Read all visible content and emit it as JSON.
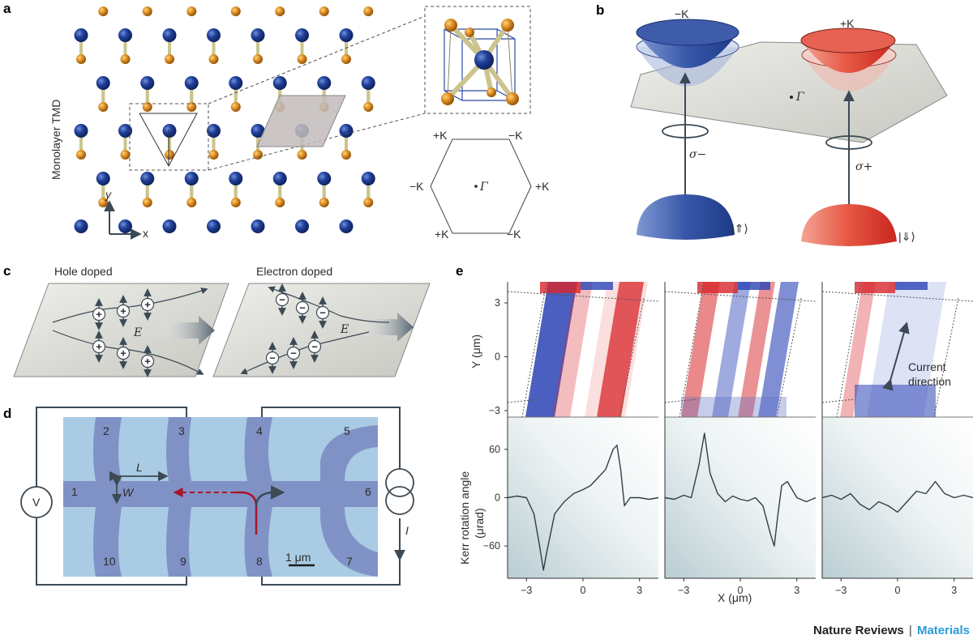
{
  "panels": {
    "a": {
      "label": "a",
      "vertical_label": "Monolayer TMD",
      "axis_y": "y",
      "axis_x": "x",
      "bz_labels": {
        "top_left": "+K",
        "top_right": "−K",
        "left": "−K",
        "right": "+K",
        "bottom_left": "+K",
        "bottom_right": "−K",
        "center": "Γ"
      }
    },
    "b": {
      "label": "b",
      "valley_left": "−K",
      "valley_right": "+K",
      "center": "Γ",
      "pol_left": "σ−",
      "pol_right": "σ+",
      "spin_left": "|⇑⟩",
      "spin_right": "|⇓⟩"
    },
    "c": {
      "label": "c",
      "hole_title": "Hole doped",
      "electron_title": "Electron doped",
      "field_label": "E",
      "plus_sign": "+",
      "minus_sign": "−"
    },
    "d": {
      "label": "d",
      "voltmeter": "V",
      "current_label": "I",
      "length_label": "L",
      "width_label": "W",
      "scale_bar": "1 μm",
      "contacts": [
        "1",
        "2",
        "3",
        "4",
        "5",
        "6",
        "7",
        "8",
        "9",
        "10"
      ]
    },
    "e": {
      "label": "e",
      "y_axis_label": "Y (μm)",
      "kerr_axis_label_1": "Kerr rotation angle",
      "kerr_axis_label_2": "(μrad)",
      "x_axis_label": "X (μm)",
      "current_annotation_1": "Current",
      "current_annotation_2": "direction",
      "y_ticks": [
        "3",
        "0",
        "−3"
      ],
      "kerr_ticks": [
        "60",
        "0",
        "−60"
      ],
      "x_ticks": [
        "−3",
        "0",
        "3"
      ]
    }
  },
  "chart_data": {
    "type": "line",
    "xlabel": "X (μm)",
    "ylabel": "Kerr rotation angle (μrad)",
    "xlim": [
      -4,
      4
    ],
    "ylim": [
      -100,
      100
    ],
    "series": [
      {
        "x": [
          -4,
          -3.5,
          -3,
          -2.6,
          -2.3,
          -2.1,
          -1.9,
          -1.5,
          -1,
          -0.5,
          0,
          0.4,
          0.8,
          1.2,
          1.6,
          1.8,
          2.0,
          2.2,
          2.5,
          3,
          3.5,
          4
        ],
        "values": [
          0,
          2,
          0,
          -20,
          -60,
          -90,
          -65,
          -20,
          -5,
          5,
          10,
          15,
          25,
          35,
          60,
          65,
          35,
          -10,
          0,
          0,
          -2,
          0
        ]
      },
      {
        "x": [
          -4,
          -3.5,
          -3,
          -2.6,
          -2.2,
          -1.9,
          -1.6,
          -1.2,
          -0.8,
          -0.4,
          0,
          0.4,
          0.8,
          1.2,
          1.6,
          1.8,
          2.0,
          2.2,
          2.5,
          3,
          3.5,
          4
        ],
        "values": [
          0,
          -2,
          3,
          0,
          40,
          80,
          30,
          5,
          -5,
          2,
          -2,
          -4,
          0,
          -10,
          -45,
          -60,
          -20,
          15,
          20,
          0,
          -5,
          0
        ]
      },
      {
        "x": [
          -4,
          -3.5,
          -3,
          -2.5,
          -2,
          -1.5,
          -1,
          -0.5,
          0,
          0.5,
          1,
          1.5,
          2,
          2.5,
          3,
          3.5,
          4
        ],
        "values": [
          0,
          3,
          -2,
          5,
          -8,
          -15,
          -5,
          -10,
          -18,
          -5,
          8,
          5,
          20,
          5,
          0,
          3,
          0
        ]
      }
    ]
  },
  "footer": {
    "journal": "Nature Reviews",
    "separator": "|",
    "section": "Materials"
  },
  "colors": {
    "valley_minus": "#2c4f9c",
    "valley_plus": "#e0493b",
    "gold_atom": "#d98a1e",
    "blue_atom": "#1f3f9a",
    "bond": "#cbc48e",
    "frame": "#3c4a55",
    "red_arrow": "#a8152a",
    "accent": "#2c9bd6"
  }
}
